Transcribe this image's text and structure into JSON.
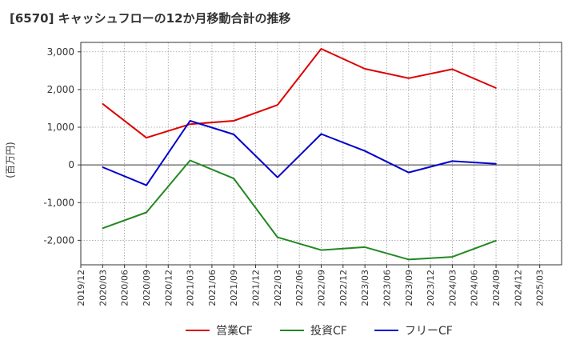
{
  "chart_data": {
    "type": "line",
    "title": "[6570]  キャッシュフローの12か月移動合計の推移",
    "ylabel": "(百万円)",
    "xlabel": "",
    "ylim": [
      -2650,
      3250
    ],
    "yticks": [
      3000,
      2000,
      1000,
      0,
      -1000,
      -2000
    ],
    "ytick_labels": [
      "3,000",
      "2,000",
      "1,000",
      "0",
      "-1,000",
      "-2,000"
    ],
    "x_tick_labels": [
      "2019/12",
      "2020/03",
      "2020/06",
      "2020/09",
      "2020/12",
      "2021/03",
      "2021/06",
      "2021/09",
      "2021/12",
      "2022/03",
      "2022/06",
      "2022/09",
      "2022/12",
      "2023/03",
      "2023/06",
      "2023/09",
      "2023/12",
      "2024/03",
      "2024/06",
      "2024/09",
      "2024/12",
      "2025/03"
    ],
    "grid": true,
    "legend_position": "bottom",
    "series": [
      {
        "name": "営業CF",
        "color": "#dd0000",
        "x": [
          1,
          3,
          5,
          7,
          9,
          11,
          13,
          15,
          17,
          19
        ],
        "values": [
          1620,
          720,
          1080,
          1170,
          1590,
          3080,
          2550,
          2300,
          2540,
          2040
        ]
      },
      {
        "name": "投資CF",
        "color": "#228822",
        "x": [
          1,
          3,
          5,
          7,
          9,
          11,
          13,
          15,
          17,
          19
        ],
        "values": [
          -1680,
          -1260,
          120,
          -360,
          -1920,
          -2260,
          -2180,
          -2510,
          -2440,
          -2010
        ]
      },
      {
        "name": "フリーCF",
        "color": "#0000cc",
        "x": [
          1,
          3,
          5,
          7,
          9,
          11,
          13,
          15,
          17,
          19
        ],
        "values": [
          -60,
          -540,
          1170,
          810,
          -330,
          820,
          370,
          -200,
          100,
          30
        ]
      }
    ]
  }
}
